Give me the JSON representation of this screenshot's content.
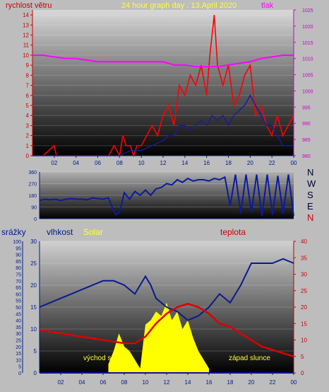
{
  "colors": {
    "wind": "#ff0000",
    "gust": "#1a1aa0",
    "pressure": "#ff00ff",
    "direction": "#0a1aa0",
    "humidity": "#0a1a90",
    "solar": "#ffff00",
    "temperature": "#dd0000",
    "rain": "#1010a0",
    "axis_text": "#001a8c"
  },
  "header": {
    "left_title": "rychlost větru",
    "center_title": "24 hour graph day . 13.April 2020",
    "right_title": "tlak"
  },
  "direction_panel": {
    "compass_labels": [
      "N",
      "W",
      "S",
      "E",
      "N"
    ]
  },
  "bottom_header": {
    "rain_label": "srážky",
    "humidity_label": "vlhkost",
    "solar_label": "Solar",
    "temp_label": "teplota"
  },
  "annotations": {
    "sunrise": "východ s",
    "sunset": "západ slunce"
  },
  "chart_data": [
    {
      "type": "line",
      "panel": "wind_pressure",
      "x_ticks": [
        "02",
        "04",
        "06",
        "08",
        "10",
        "12",
        "14",
        "16",
        "18",
        "20",
        "22",
        "00"
      ],
      "y_ticks_left": [
        "0",
        "1",
        "2",
        "3",
        "4",
        "5",
        "6",
        "7",
        "8",
        "9",
        "10",
        "11",
        "12",
        "13",
        "14"
      ],
      "y_ticks_right": [
        "980",
        "985",
        "990",
        "995",
        "1000",
        "1005",
        "1010",
        "1015",
        "1020",
        "1025"
      ],
      "ylim_left": [
        0,
        14.5
      ],
      "ylim_right": [
        980,
        1025
      ],
      "xlim": [
        0,
        24
      ],
      "series": [
        {
          "key": "wind",
          "x": [
            0,
            1,
            2,
            2.2,
            2.4,
            3,
            4,
            5,
            6,
            7,
            7.5,
            8,
            8.3,
            8.6,
            9,
            9.3,
            9.6,
            10,
            10.5,
            11,
            11.5,
            12,
            12.5,
            13,
            13.5,
            14,
            14.5,
            15,
            15.5,
            16,
            16.3,
            16.7,
            17,
            17.5,
            18,
            18.5,
            19,
            19.5,
            20,
            20.5,
            21,
            21.5,
            22,
            22.5,
            23,
            23.5,
            24
          ],
          "y": [
            0,
            0,
            1,
            0,
            0,
            0,
            0,
            0,
            0,
            0,
            1,
            0,
            2,
            1,
            1,
            0,
            1,
            1,
            2,
            3,
            2,
            4,
            5,
            3,
            7,
            6,
            8,
            7,
            9,
            6,
            10,
            14,
            9,
            7,
            9,
            5,
            6,
            8,
            9,
            4,
            5,
            3,
            2,
            4,
            2,
            3,
            4
          ]
        },
        {
          "key": "gust",
          "x": [
            0,
            1,
            2,
            3,
            4,
            5,
            6,
            7,
            8,
            9,
            10,
            11,
            12,
            12.5,
            13,
            13.5,
            14,
            14.5,
            15,
            15.5,
            16,
            16.5,
            17,
            17.5,
            18,
            18.5,
            19,
            19.5,
            20,
            20.5,
            21,
            21.5,
            22,
            22.5,
            23,
            23.5,
            24
          ],
          "y": [
            0,
            0,
            0,
            0,
            0,
            0,
            0,
            0,
            0,
            0.5,
            0.5,
            1,
            1.5,
            2,
            2,
            3,
            3,
            2.5,
            3,
            3.5,
            3,
            4,
            3.5,
            4,
            3,
            4,
            4.5,
            5,
            6,
            5,
            4,
            3,
            3,
            2,
            1,
            1,
            1
          ]
        },
        {
          "key": "pressure",
          "x": [
            0,
            1,
            2,
            3,
            4,
            5,
            6,
            7,
            8,
            9,
            10,
            11,
            12,
            13,
            14,
            15,
            16,
            17,
            18,
            19,
            20,
            21,
            22,
            23,
            24
          ],
          "y": [
            1011,
            1011,
            1010.5,
            1010,
            1010,
            1009.5,
            1009,
            1009,
            1009,
            1009,
            1009,
            1009,
            1009,
            1008,
            1008,
            1007.5,
            1007.5,
            1007.5,
            1008,
            1008.5,
            1009,
            1010,
            1010.5,
            1011,
            1011
          ]
        }
      ]
    },
    {
      "type": "line",
      "panel": "wind_direction",
      "y_ticks": [
        "0",
        "90",
        "180",
        "270",
        "360"
      ],
      "ylim": [
        0,
        360
      ],
      "xlim": [
        0,
        24
      ],
      "series": [
        {
          "key": "direction",
          "x": [
            0,
            0.5,
            1,
            1.5,
            2,
            2.5,
            3,
            3.5,
            4,
            4.5,
            5,
            5.5,
            6,
            6.5,
            7,
            7.2,
            7.4,
            7.6,
            8,
            8.5,
            9,
            9.5,
            10,
            10.5,
            11,
            11.5,
            12,
            12.5,
            13,
            13.5,
            14,
            14.5,
            15,
            15.5,
            16,
            16.5,
            17,
            17.5,
            18,
            18.5,
            19,
            19.5,
            20,
            20.5,
            21,
            21.5,
            22,
            22.5,
            23,
            23.5,
            24
          ],
          "y": [
            140,
            150,
            145,
            150,
            140,
            150,
            155,
            150,
            150,
            145,
            160,
            155,
            150,
            160,
            60,
            30,
            40,
            60,
            200,
            150,
            210,
            180,
            220,
            180,
            230,
            240,
            270,
            260,
            300,
            280,
            310,
            290,
            300,
            300,
            290,
            310,
            300,
            320,
            100,
            340,
            40,
            340,
            50,
            340,
            20,
            340,
            30,
            330,
            40,
            340,
            20
          ]
        }
      ]
    },
    {
      "type": "line",
      "panel": "humidity_solar_temp",
      "x_ticks": [
        "02",
        "04",
        "06",
        "08",
        "10",
        "12",
        "14",
        "16",
        "18",
        "20",
        "22",
        "00"
      ],
      "y_ticks_rain": [
        "0",
        "5",
        "10",
        "15",
        "20",
        "25",
        "30",
        "35",
        "40",
        "45",
        "50",
        "55",
        "60",
        "65",
        "70",
        "75",
        "80",
        "85",
        "90",
        "95",
        "100"
      ],
      "y_ticks_humidity": [
        "0",
        "5",
        "10",
        "15",
        "20",
        "25",
        "30"
      ],
      "y_ticks_temp": [
        "0",
        "5",
        "10",
        "15",
        "20",
        "25",
        "30",
        "35",
        "40"
      ],
      "ylim_humidity": [
        0,
        30
      ],
      "ylim_temp": [
        0,
        40
      ],
      "xlim": [
        0,
        24
      ],
      "series": [
        {
          "key": "humidity",
          "x": [
            0,
            1,
            2,
            3,
            4,
            5,
            6,
            7,
            8,
            9,
            10,
            10.5,
            11,
            12,
            13,
            14,
            15,
            16,
            17,
            18,
            19,
            20,
            21,
            22,
            23,
            24
          ],
          "y": [
            15,
            16,
            17,
            18,
            19,
            20,
            21,
            21,
            20,
            18,
            22,
            20,
            17,
            15,
            14,
            12,
            13,
            15,
            18,
            16,
            20,
            25,
            25,
            25,
            26,
            25
          ]
        },
        {
          "key": "temperature",
          "x": [
            0,
            1,
            2,
            3,
            4,
            5,
            6,
            7,
            8,
            9,
            10,
            11,
            12,
            13,
            14,
            15,
            16,
            17,
            18,
            19,
            20,
            21,
            22,
            23,
            24
          ],
          "y": [
            13,
            12.5,
            12,
            11.5,
            11,
            10.5,
            10,
            9.5,
            9,
            9,
            11,
            15,
            18,
            20,
            21,
            20,
            18,
            15,
            14,
            12,
            10,
            8,
            7,
            6,
            5
          ]
        },
        {
          "key": "solar",
          "x": [
            6.5,
            7,
            7.5,
            8,
            8.5,
            9,
            9.5,
            10,
            10.5,
            11,
            11.5,
            12,
            12.5,
            13,
            13.5,
            14,
            14.5,
            15,
            15.5,
            16
          ],
          "y": [
            2,
            5,
            9,
            6,
            5,
            3,
            1,
            11,
            12,
            14,
            13,
            16,
            12,
            14,
            10,
            12,
            8,
            5,
            3,
            1
          ]
        },
        {
          "key": "rain",
          "x": [
            0,
            24
          ],
          "y": [
            0,
            0
          ]
        }
      ]
    }
  ]
}
